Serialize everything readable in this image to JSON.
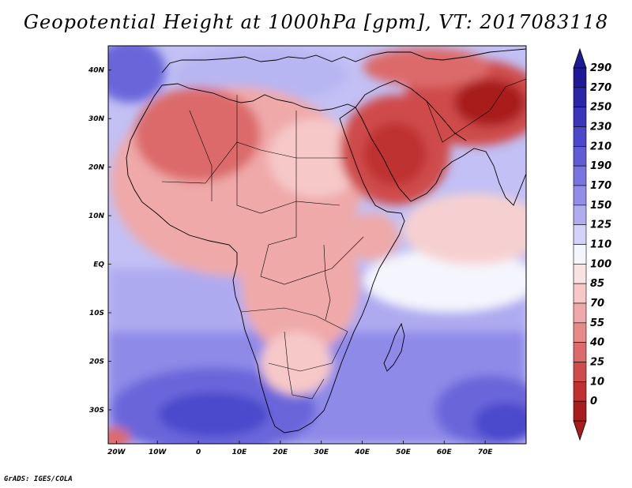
{
  "title": "Geopotential Height at 1000hPa [gpm], VT: 2017083118",
  "footer": "GrADS: IGES/COLA",
  "map": {
    "lon_range": [
      -22,
      80
    ],
    "lat_range": [
      -37,
      45
    ],
    "x_ticks": [
      {
        "lon": -20,
        "label": "20W"
      },
      {
        "lon": -10,
        "label": "10W"
      },
      {
        "lon": 0,
        "label": "0"
      },
      {
        "lon": 10,
        "label": "10E"
      },
      {
        "lon": 20,
        "label": "20E"
      },
      {
        "lon": 30,
        "label": "30E"
      },
      {
        "lon": 40,
        "label": "40E"
      },
      {
        "lon": 50,
        "label": "50E"
      },
      {
        "lon": 60,
        "label": "60E"
      },
      {
        "lon": 70,
        "label": "70E"
      }
    ],
    "y_ticks": [
      {
        "lat": 40,
        "label": "40N"
      },
      {
        "lat": 30,
        "label": "30N"
      },
      {
        "lat": 20,
        "label": "20N"
      },
      {
        "lat": 10,
        "label": "10N"
      },
      {
        "lat": 0,
        "label": "EQ"
      },
      {
        "lat": -10,
        "label": "10S"
      },
      {
        "lat": -20,
        "label": "20S"
      },
      {
        "lat": -30,
        "label": "30S"
      }
    ]
  },
  "colorbar": {
    "levels": [
      {
        "label": "290",
        "color": "#1e1a96"
      },
      {
        "label": "270",
        "color": "#2a26a8"
      },
      {
        "label": "250",
        "color": "#3a36bc"
      },
      {
        "label": "230",
        "color": "#4c48cc"
      },
      {
        "label": "210",
        "color": "#615cd6"
      },
      {
        "label": "190",
        "color": "#7874e0"
      },
      {
        "label": "170",
        "color": "#928ee8"
      },
      {
        "label": "150",
        "color": "#b0acf0"
      },
      {
        "label": "125",
        "color": "#d4d2f8"
      },
      {
        "label": "110",
        "color": "#f5f5fd"
      },
      {
        "label": "100",
        "color": "#fbe2e2"
      },
      {
        "label": "85",
        "color": "#f6c8c8"
      },
      {
        "label": "70",
        "color": "#efa9a9"
      },
      {
        "label": "55",
        "color": "#e78a8a"
      },
      {
        "label": "40",
        "color": "#dc6a6a"
      },
      {
        "label": "25",
        "color": "#cf4c4c"
      },
      {
        "label": "10",
        "color": "#bf3030"
      },
      {
        "label": "0",
        "color": "#a81c1c"
      }
    ]
  },
  "field_areas": [
    {
      "name": "high-south-atlantic",
      "value": 250
    },
    {
      "name": "high-southwest-indian",
      "value": 230
    },
    {
      "name": "low-arabia",
      "value": 25
    },
    {
      "name": "low-south-asia",
      "value": 10
    },
    {
      "name": "low-sahara-west",
      "value": 55
    },
    {
      "name": "equatorial-africa",
      "value": 85
    }
  ]
}
